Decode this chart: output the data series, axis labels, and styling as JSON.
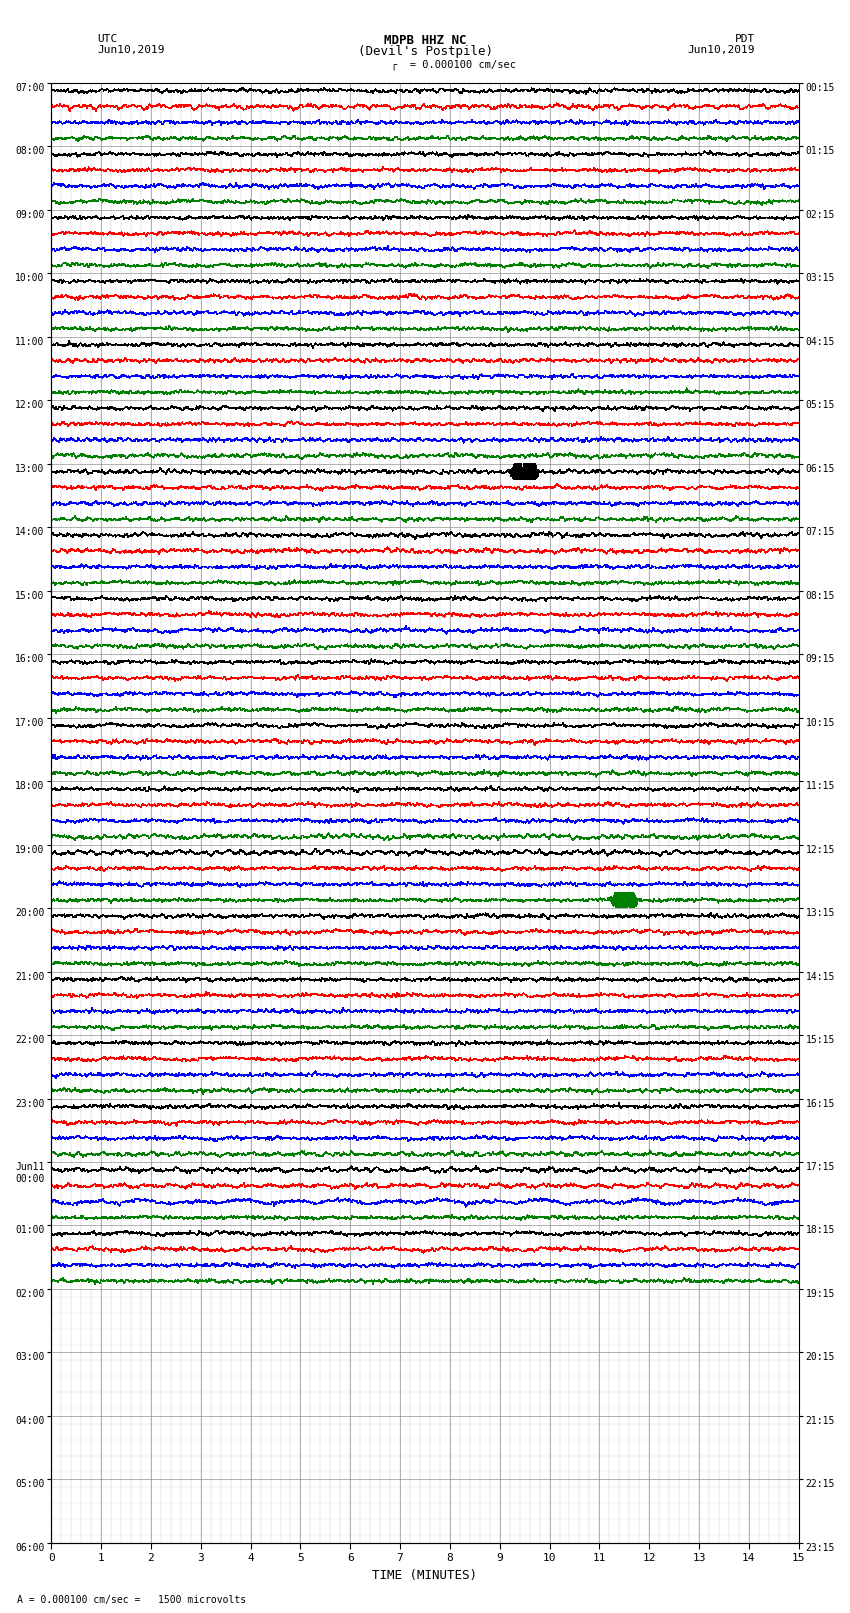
{
  "title_line1": "MDPB HHZ NC",
  "title_line2": "(Devil's Postpile)",
  "scale_label": "= 0.000100 cm/sec",
  "left_label_line1": "UTC",
  "left_label_line2": "Jun10,2019",
  "right_label_line1": "PDT",
  "right_label_line2": "Jun10,2019",
  "bottom_label": "A = 0.000100 cm/sec =   1500 microvolts",
  "xlabel": "TIME (MINUTES)",
  "trace_colors": [
    "black",
    "red",
    "blue",
    "green"
  ],
  "minutes": 15,
  "bg_color": "white",
  "utc_labels": [
    "07:00",
    "08:00",
    "09:00",
    "10:00",
    "11:00",
    "12:00",
    "13:00",
    "14:00",
    "15:00",
    "16:00",
    "17:00",
    "18:00",
    "19:00",
    "20:00",
    "21:00",
    "22:00",
    "23:00",
    "Jun11\n00:00",
    "01:00",
    "02:00",
    "03:00",
    "04:00",
    "05:00",
    "06:00"
  ],
  "pdt_labels": [
    "00:15",
    "01:15",
    "02:15",
    "03:15",
    "04:15",
    "05:15",
    "06:15",
    "07:15",
    "08:15",
    "09:15",
    "10:15",
    "11:15",
    "12:15",
    "13:15",
    "14:15",
    "15:15",
    "16:15",
    "17:15",
    "18:15",
    "19:15",
    "20:15",
    "21:15",
    "22:15",
    "23:15"
  ],
  "n_hour_blocks": 23,
  "active_blocks": 19,
  "traces_per_block": 4,
  "amp": 0.28,
  "event1_block": 6,
  "event1_color_idx": 0,
  "event1_minute": 9.5,
  "event1_amp": 12.0,
  "event2_block": 12,
  "event2_color_idx": 3,
  "event2_minute": 11.5,
  "event2_amp": 8.0
}
